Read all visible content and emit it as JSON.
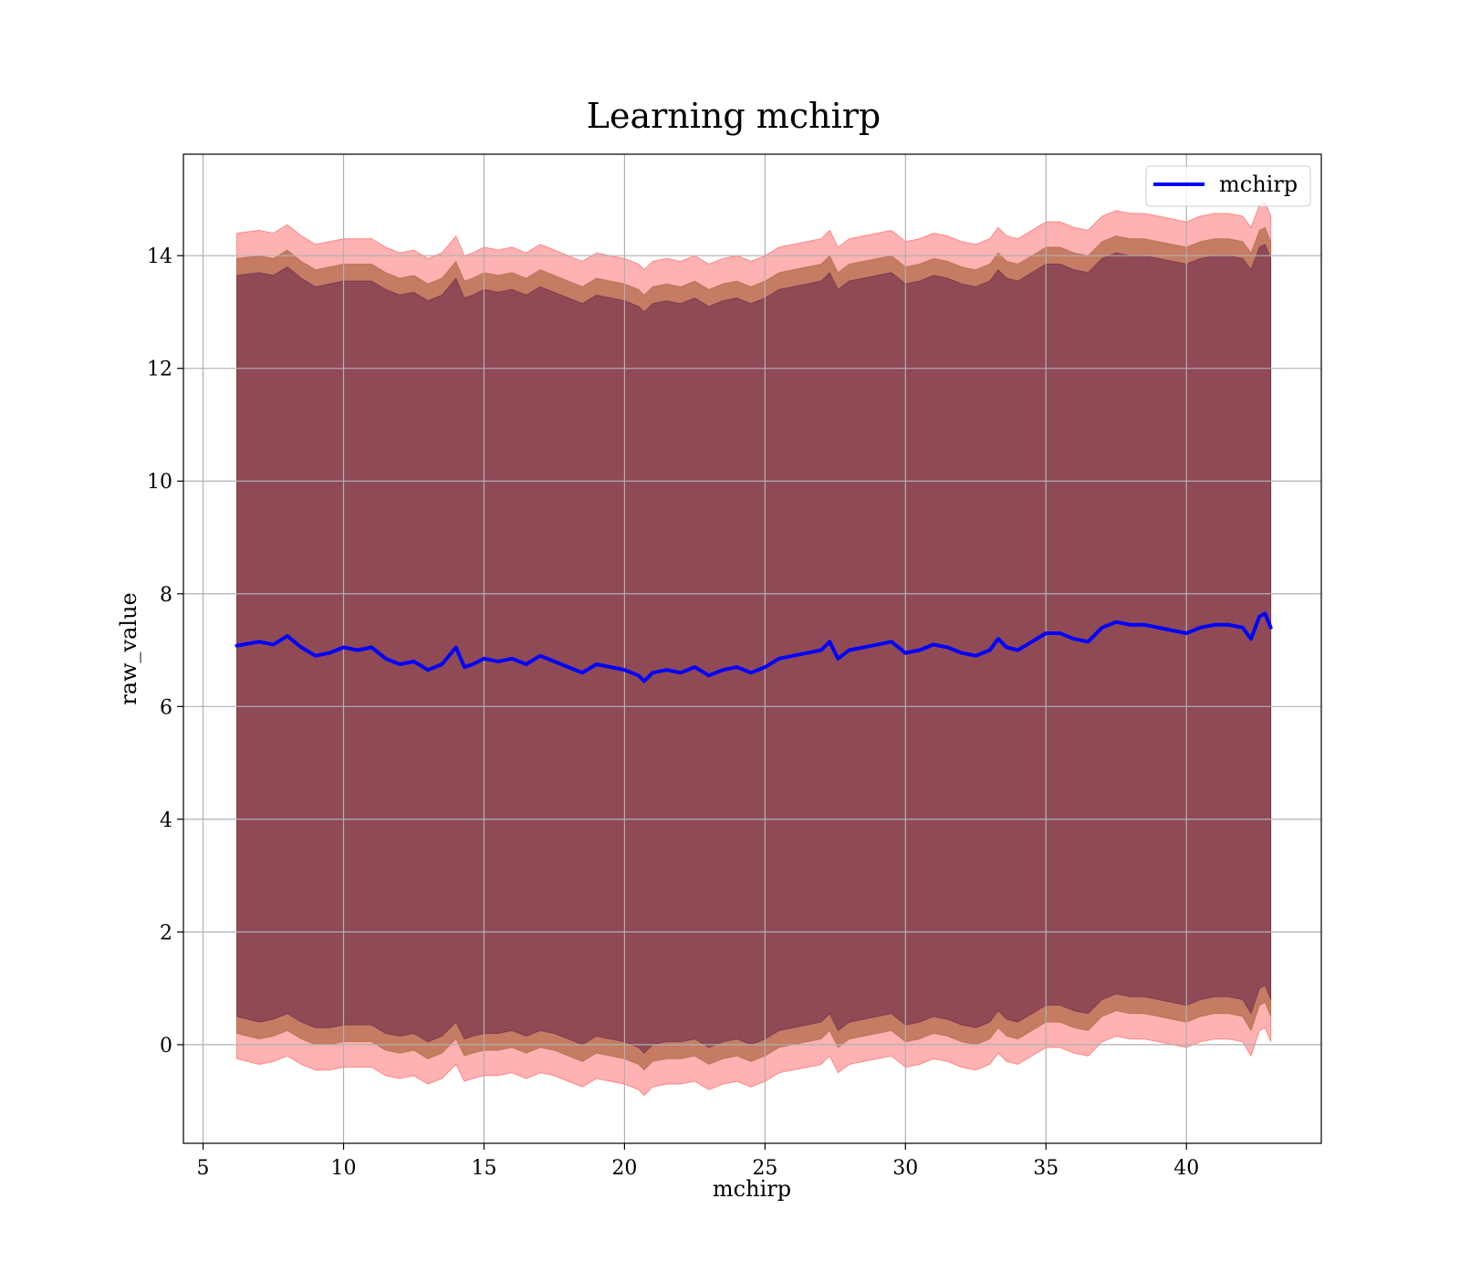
{
  "chart_data": {
    "type": "line",
    "title": "Learning mchirp",
    "xlabel": "mchirp",
    "ylabel": "raw_value",
    "xlim": [
      4.3,
      44.8
    ],
    "ylim": [
      -1.75,
      15.8
    ],
    "x_ticks": [
      5,
      10,
      15,
      20,
      25,
      30,
      35,
      40
    ],
    "y_ticks": [
      0,
      2,
      4,
      6,
      8,
      10,
      12,
      14
    ],
    "x_tick_labels": [
      "5",
      "10",
      "15",
      "20",
      "25",
      "30",
      "35",
      "40"
    ],
    "y_tick_labels": [
      "0",
      "2",
      "4",
      "6",
      "8",
      "10",
      "12",
      "14"
    ],
    "grid": true,
    "legend": {
      "position": "upper right",
      "entries": [
        "mchirp"
      ]
    },
    "colors": {
      "line": "#0000ff",
      "band_outer": "#ff0000",
      "band_middle": "#8b4513",
      "band_inner": "#400040",
      "grid": "#b0b0b0",
      "axes": "#000000"
    },
    "x": [
      6.2,
      7.0,
      7.5,
      8.0,
      8.5,
      9.0,
      9.5,
      10.0,
      10.5,
      11.0,
      11.5,
      12.0,
      12.5,
      13.0,
      13.5,
      14.0,
      14.3,
      14.6,
      15.0,
      15.5,
      16.0,
      16.5,
      17.0,
      17.5,
      18.0,
      18.5,
      19.0,
      19.5,
      20.0,
      20.5,
      20.7,
      21.0,
      21.5,
      22.0,
      22.5,
      23.0,
      23.5,
      24.0,
      24.5,
      25.0,
      25.5,
      26.0,
      26.5,
      27.0,
      27.3,
      27.6,
      28.0,
      28.5,
      29.0,
      29.5,
      30.0,
      30.5,
      31.0,
      31.5,
      32.0,
      32.5,
      33.0,
      33.3,
      33.6,
      34.0,
      34.5,
      35.0,
      35.5,
      36.0,
      36.5,
      37.0,
      37.5,
      38.0,
      38.5,
      39.0,
      39.5,
      40.0,
      40.5,
      41.0,
      41.5,
      42.0,
      42.3,
      42.6,
      42.8,
      43.0
    ],
    "series": [
      {
        "name": "mchirp",
        "values": [
          7.08,
          7.15,
          7.1,
          7.25,
          7.05,
          6.9,
          6.95,
          7.05,
          7.0,
          7.05,
          6.85,
          6.75,
          6.8,
          6.65,
          6.75,
          7.05,
          6.7,
          6.75,
          6.85,
          6.8,
          6.85,
          6.75,
          6.9,
          6.8,
          6.7,
          6.6,
          6.75,
          6.7,
          6.65,
          6.55,
          6.45,
          6.6,
          6.65,
          6.6,
          6.7,
          6.55,
          6.65,
          6.7,
          6.6,
          6.7,
          6.85,
          6.9,
          6.95,
          7.0,
          7.15,
          6.85,
          7.0,
          7.05,
          7.1,
          7.15,
          6.95,
          7.0,
          7.1,
          7.05,
          6.95,
          6.9,
          7.0,
          7.2,
          7.05,
          7.0,
          7.15,
          7.3,
          7.3,
          7.2,
          7.15,
          7.4,
          7.5,
          7.45,
          7.45,
          7.4,
          7.35,
          7.3,
          7.4,
          7.45,
          7.45,
          7.4,
          7.2,
          7.6,
          7.65,
          7.4
        ]
      }
    ],
    "bands": [
      {
        "name": "outer",
        "lower": [
          -0.25,
          -0.35,
          -0.3,
          -0.2,
          -0.35,
          -0.45,
          -0.45,
          -0.4,
          -0.4,
          -0.4,
          -0.55,
          -0.6,
          -0.55,
          -0.7,
          -0.6,
          -0.35,
          -0.65,
          -0.6,
          -0.55,
          -0.55,
          -0.5,
          -0.6,
          -0.5,
          -0.55,
          -0.65,
          -0.75,
          -0.6,
          -0.65,
          -0.7,
          -0.8,
          -0.9,
          -0.75,
          -0.7,
          -0.7,
          -0.65,
          -0.8,
          -0.7,
          -0.65,
          -0.75,
          -0.65,
          -0.5,
          -0.45,
          -0.4,
          -0.35,
          -0.2,
          -0.5,
          -0.35,
          -0.3,
          -0.25,
          -0.2,
          -0.4,
          -0.35,
          -0.25,
          -0.3,
          -0.4,
          -0.45,
          -0.35,
          -0.15,
          -0.3,
          -0.35,
          -0.2,
          -0.05,
          -0.05,
          -0.15,
          -0.2,
          0.05,
          0.15,
          0.1,
          0.1,
          0.05,
          0.0,
          -0.05,
          0.05,
          0.1,
          0.1,
          0.05,
          -0.2,
          0.25,
          0.3,
          0.05
        ],
        "upper": [
          14.4,
          14.45,
          14.4,
          14.55,
          14.35,
          14.2,
          14.25,
          14.3,
          14.3,
          14.3,
          14.15,
          14.05,
          14.1,
          13.95,
          14.05,
          14.35,
          14.0,
          14.05,
          14.15,
          14.1,
          14.15,
          14.05,
          14.2,
          14.1,
          14.0,
          13.9,
          14.05,
          14.0,
          13.95,
          13.85,
          13.75,
          13.9,
          13.95,
          13.9,
          14.0,
          13.85,
          13.95,
          14.0,
          13.9,
          14.0,
          14.15,
          14.2,
          14.25,
          14.3,
          14.45,
          14.15,
          14.3,
          14.35,
          14.4,
          14.45,
          14.25,
          14.3,
          14.4,
          14.35,
          14.25,
          14.2,
          14.3,
          14.5,
          14.35,
          14.3,
          14.45,
          14.6,
          14.6,
          14.5,
          14.45,
          14.7,
          14.8,
          14.75,
          14.75,
          14.7,
          14.65,
          14.6,
          14.7,
          14.75,
          14.75,
          14.7,
          14.5,
          14.9,
          14.95,
          14.7
        ]
      },
      {
        "name": "middle",
        "lower": [
          0.2,
          0.1,
          0.15,
          0.25,
          0.1,
          0.0,
          0.0,
          0.05,
          0.05,
          0.05,
          -0.1,
          -0.15,
          -0.1,
          -0.25,
          -0.15,
          0.1,
          -0.2,
          -0.15,
          -0.1,
          -0.1,
          -0.05,
          -0.15,
          -0.05,
          -0.1,
          -0.2,
          -0.3,
          -0.15,
          -0.2,
          -0.25,
          -0.35,
          -0.45,
          -0.3,
          -0.25,
          -0.25,
          -0.2,
          -0.35,
          -0.25,
          -0.2,
          -0.3,
          -0.2,
          -0.05,
          0.0,
          0.05,
          0.1,
          0.25,
          -0.05,
          0.1,
          0.15,
          0.2,
          0.25,
          0.05,
          0.1,
          0.2,
          0.15,
          0.05,
          0.0,
          0.1,
          0.3,
          0.15,
          0.1,
          0.25,
          0.4,
          0.4,
          0.3,
          0.25,
          0.5,
          0.6,
          0.55,
          0.55,
          0.5,
          0.45,
          0.4,
          0.5,
          0.55,
          0.55,
          0.5,
          0.25,
          0.7,
          0.75,
          0.5
        ],
        "upper": [
          13.95,
          14.0,
          13.95,
          14.1,
          13.9,
          13.75,
          13.8,
          13.85,
          13.85,
          13.85,
          13.7,
          13.6,
          13.65,
          13.5,
          13.6,
          13.9,
          13.55,
          13.6,
          13.7,
          13.65,
          13.7,
          13.6,
          13.75,
          13.65,
          13.55,
          13.45,
          13.6,
          13.55,
          13.5,
          13.4,
          13.3,
          13.45,
          13.5,
          13.45,
          13.55,
          13.4,
          13.5,
          13.55,
          13.45,
          13.55,
          13.7,
          13.75,
          13.8,
          13.85,
          14.0,
          13.7,
          13.85,
          13.9,
          13.95,
          14.0,
          13.8,
          13.85,
          13.95,
          13.9,
          13.8,
          13.75,
          13.85,
          14.05,
          13.9,
          13.85,
          14.0,
          14.15,
          14.15,
          14.05,
          14.0,
          14.25,
          14.35,
          14.3,
          14.3,
          14.25,
          14.2,
          14.15,
          14.25,
          14.3,
          14.3,
          14.25,
          14.05,
          14.45,
          14.5,
          14.25
        ]
      },
      {
        "name": "inner",
        "lower": [
          0.5,
          0.4,
          0.45,
          0.55,
          0.4,
          0.3,
          0.3,
          0.35,
          0.35,
          0.35,
          0.2,
          0.15,
          0.2,
          0.05,
          0.15,
          0.4,
          0.1,
          0.15,
          0.2,
          0.2,
          0.25,
          0.15,
          0.25,
          0.2,
          0.1,
          0.0,
          0.15,
          0.1,
          0.05,
          -0.05,
          -0.15,
          0.0,
          0.05,
          0.05,
          0.1,
          -0.05,
          0.05,
          0.1,
          0.0,
          0.1,
          0.25,
          0.3,
          0.35,
          0.4,
          0.55,
          0.25,
          0.4,
          0.45,
          0.5,
          0.55,
          0.35,
          0.4,
          0.5,
          0.45,
          0.35,
          0.3,
          0.4,
          0.6,
          0.45,
          0.4,
          0.55,
          0.7,
          0.7,
          0.6,
          0.55,
          0.8,
          0.9,
          0.85,
          0.85,
          0.8,
          0.75,
          0.7,
          0.8,
          0.85,
          0.85,
          0.8,
          0.55,
          1.0,
          1.05,
          0.8
        ],
        "upper": [
          13.65,
          13.7,
          13.65,
          13.8,
          13.6,
          13.45,
          13.5,
          13.55,
          13.55,
          13.55,
          13.4,
          13.3,
          13.35,
          13.2,
          13.3,
          13.6,
          13.25,
          13.3,
          13.4,
          13.35,
          13.4,
          13.3,
          13.45,
          13.35,
          13.25,
          13.15,
          13.3,
          13.25,
          13.2,
          13.1,
          13.0,
          13.15,
          13.2,
          13.15,
          13.25,
          13.1,
          13.2,
          13.25,
          13.15,
          13.25,
          13.4,
          13.45,
          13.5,
          13.55,
          13.7,
          13.4,
          13.55,
          13.6,
          13.65,
          13.7,
          13.5,
          13.55,
          13.65,
          13.6,
          13.5,
          13.45,
          13.55,
          13.75,
          13.6,
          13.55,
          13.7,
          13.85,
          13.85,
          13.75,
          13.7,
          13.95,
          14.05,
          14.0,
          14.0,
          13.95,
          13.9,
          13.85,
          13.95,
          14.0,
          14.0,
          13.95,
          13.75,
          14.15,
          14.2,
          13.95
        ]
      }
    ]
  }
}
